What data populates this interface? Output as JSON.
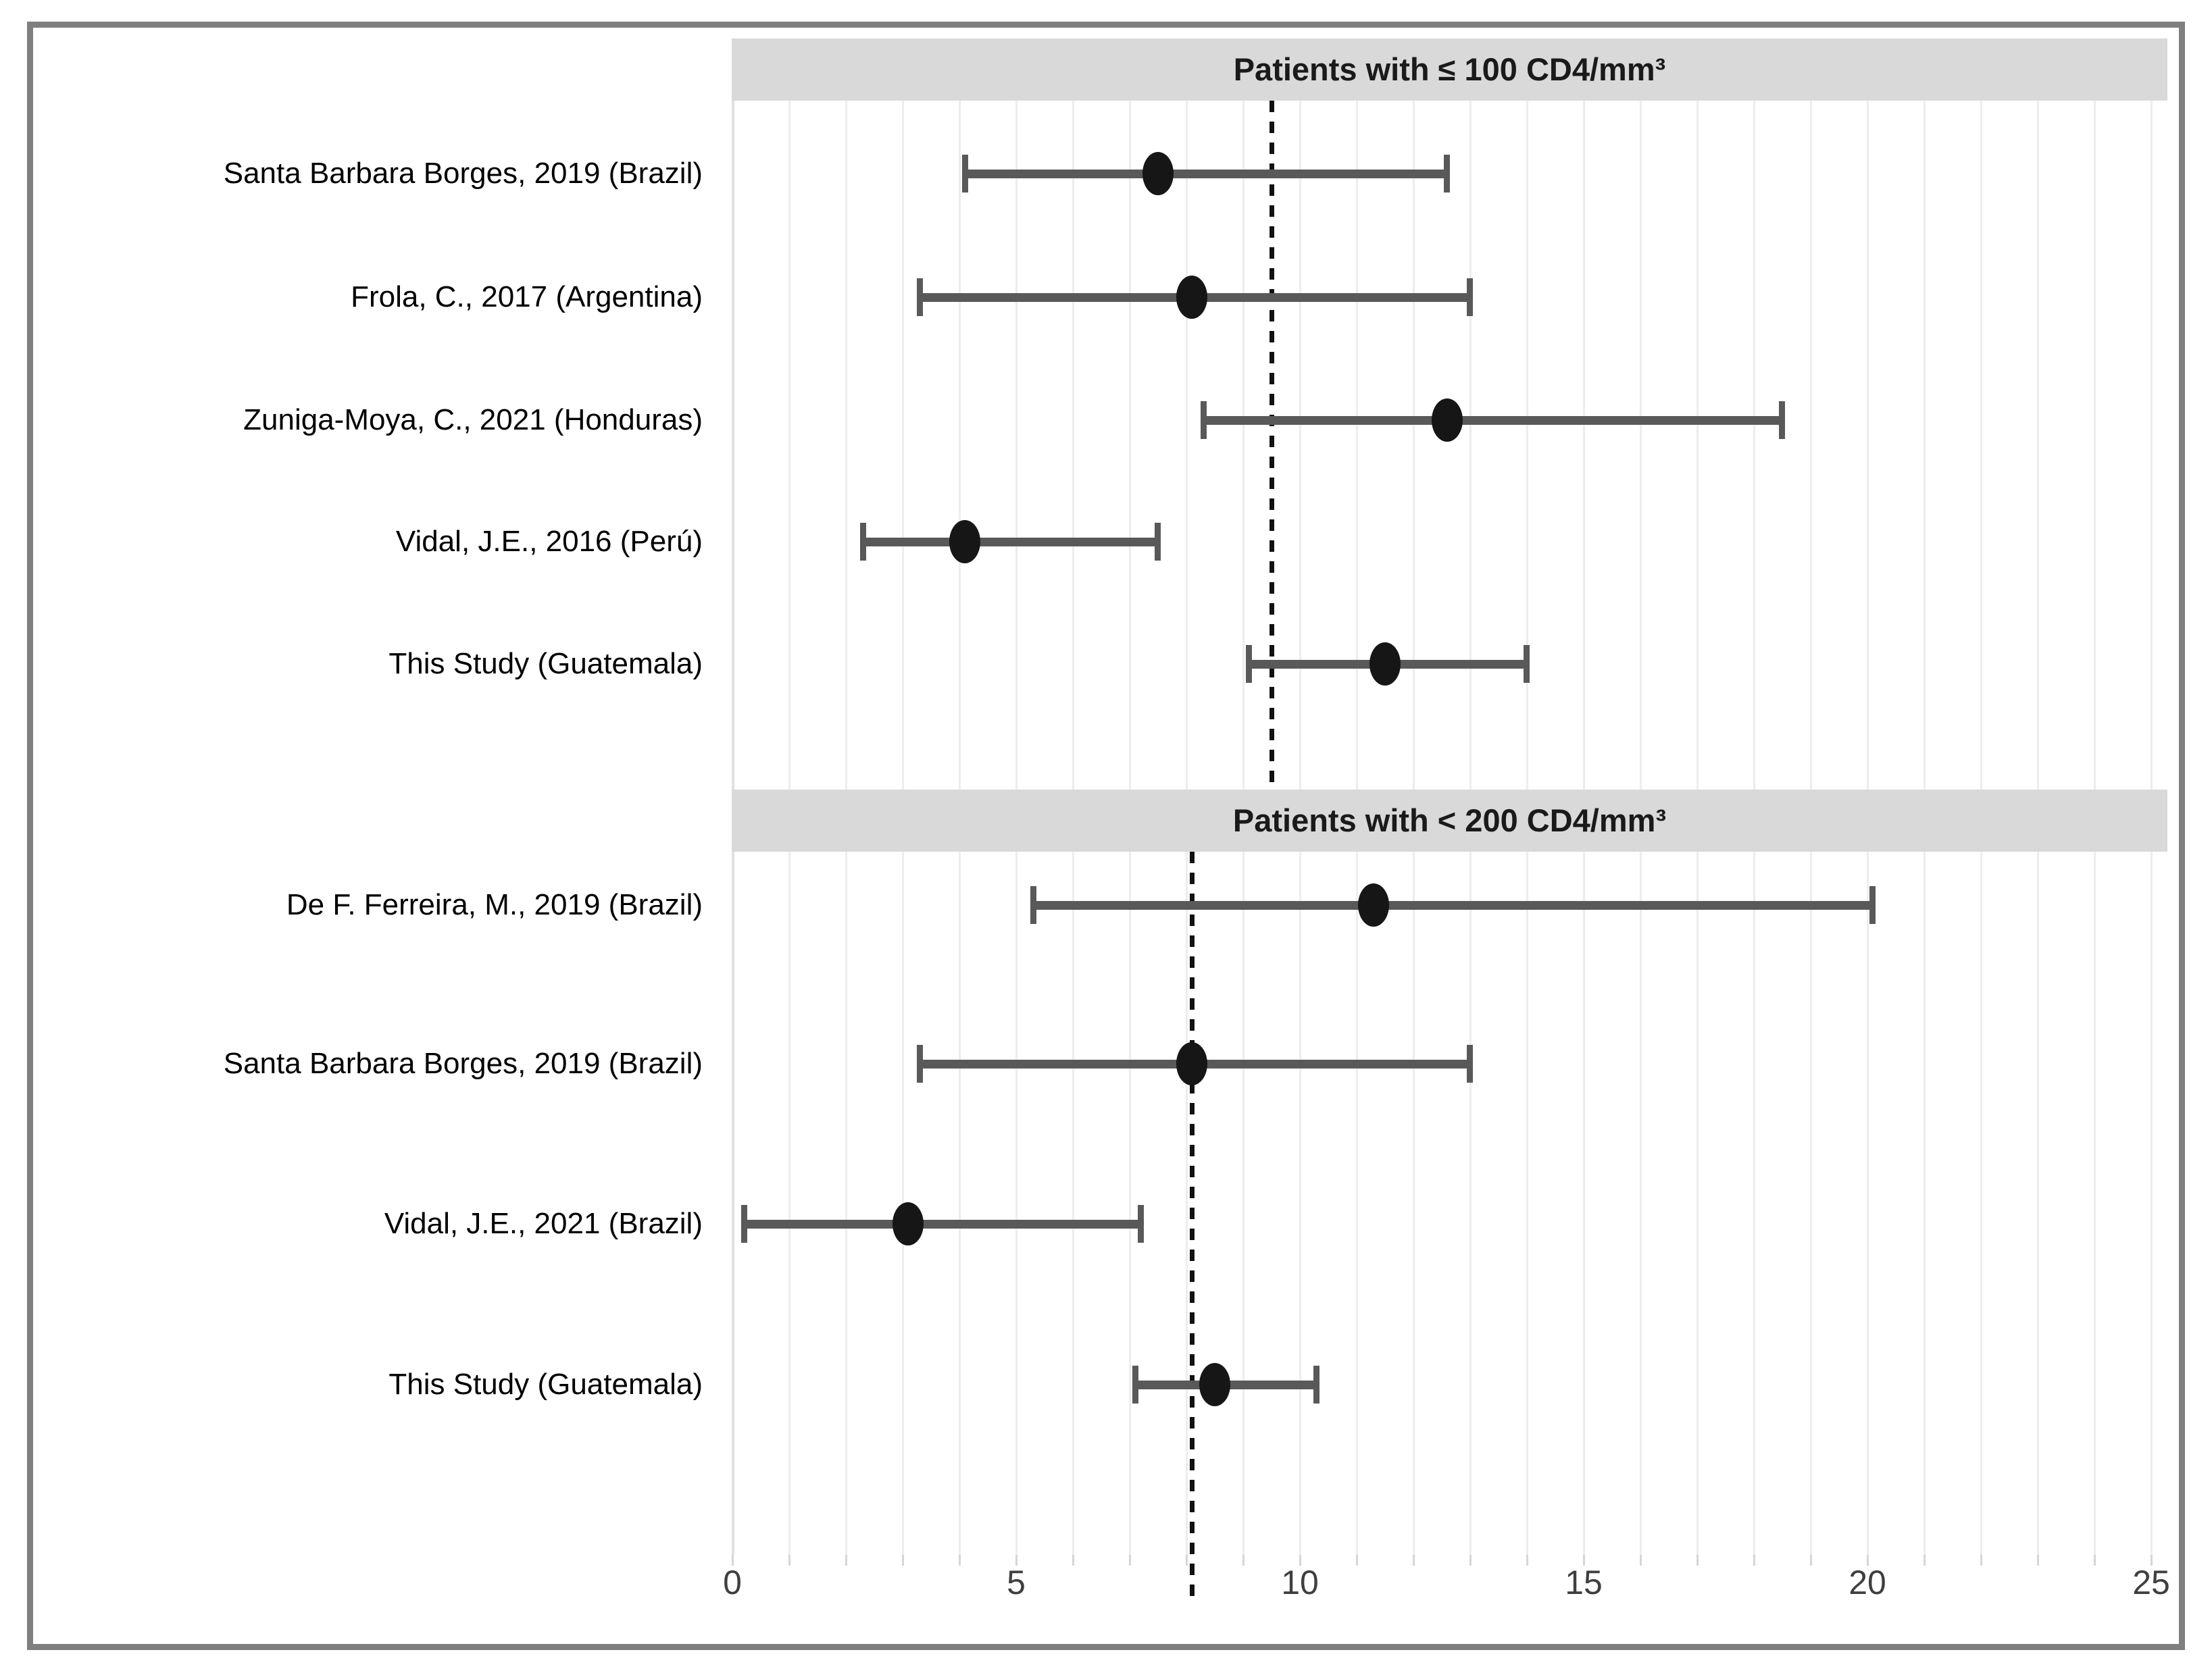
{
  "figure": {
    "border_color": "#7f7f7f",
    "background": "#ffffff"
  },
  "chart_data": {
    "type": "forest",
    "x_axis": {
      "min": 0,
      "max": 25,
      "tick_labels": [
        "0",
        "5",
        "10",
        "15",
        "20",
        "25"
      ],
      "tick_values": [
        0,
        5,
        10,
        15,
        20,
        25
      ],
      "gridline_step": 1,
      "grid": "on"
    },
    "panels": [
      {
        "title": "Patients with ≤ 100 CD4/mm³",
        "reference_line": 9.5,
        "rows": [
          {
            "label": "Santa Barbara Borges, 2019 (Brazil)",
            "value": 7.5,
            "ci_low": 4.1,
            "ci_high": 12.6
          },
          {
            "label": "Frola, C., 2017 (Argentina)",
            "value": 8.1,
            "ci_low": 3.3,
            "ci_high": 13.0
          },
          {
            "label": "Zuniga-Moya, C., 2021 (Honduras)",
            "value": 12.6,
            "ci_low": 8.3,
            "ci_high": 18.5
          },
          {
            "label": "Vidal, J.E., 2016 (Perú)",
            "value": 4.1,
            "ci_low": 2.3,
            "ci_high": 7.5
          },
          {
            "label": "This Study (Guatemala)",
            "value": 11.5,
            "ci_low": 9.1,
            "ci_high": 14.0
          }
        ]
      },
      {
        "title": "Patients with < 200 CD4/mm³",
        "reference_line": 8.1,
        "rows": [
          {
            "label": "De F. Ferreira, M., 2019 (Brazil)",
            "value": 11.3,
            "ci_low": 5.3,
            "ci_high": 20.1
          },
          {
            "label": "Santa Barbara Borges, 2019 (Brazil)",
            "value": 8.1,
            "ci_low": 3.3,
            "ci_high": 13.0
          },
          {
            "label": "Vidal, J.E., 2021 (Brazil)",
            "value": 3.1,
            "ci_low": 0.2,
            "ci_high": 7.2
          },
          {
            "label": "This Study (Guatemala)",
            "value": 8.5,
            "ci_low": 7.1,
            "ci_high": 10.3
          }
        ]
      }
    ],
    "colors": {
      "panel_band": "#d9d9d9",
      "gridline": "#ededed",
      "error_bar": "#595959",
      "point": "#161616",
      "reference_line": "#111111",
      "tick_text": "#3f3f3f"
    }
  }
}
